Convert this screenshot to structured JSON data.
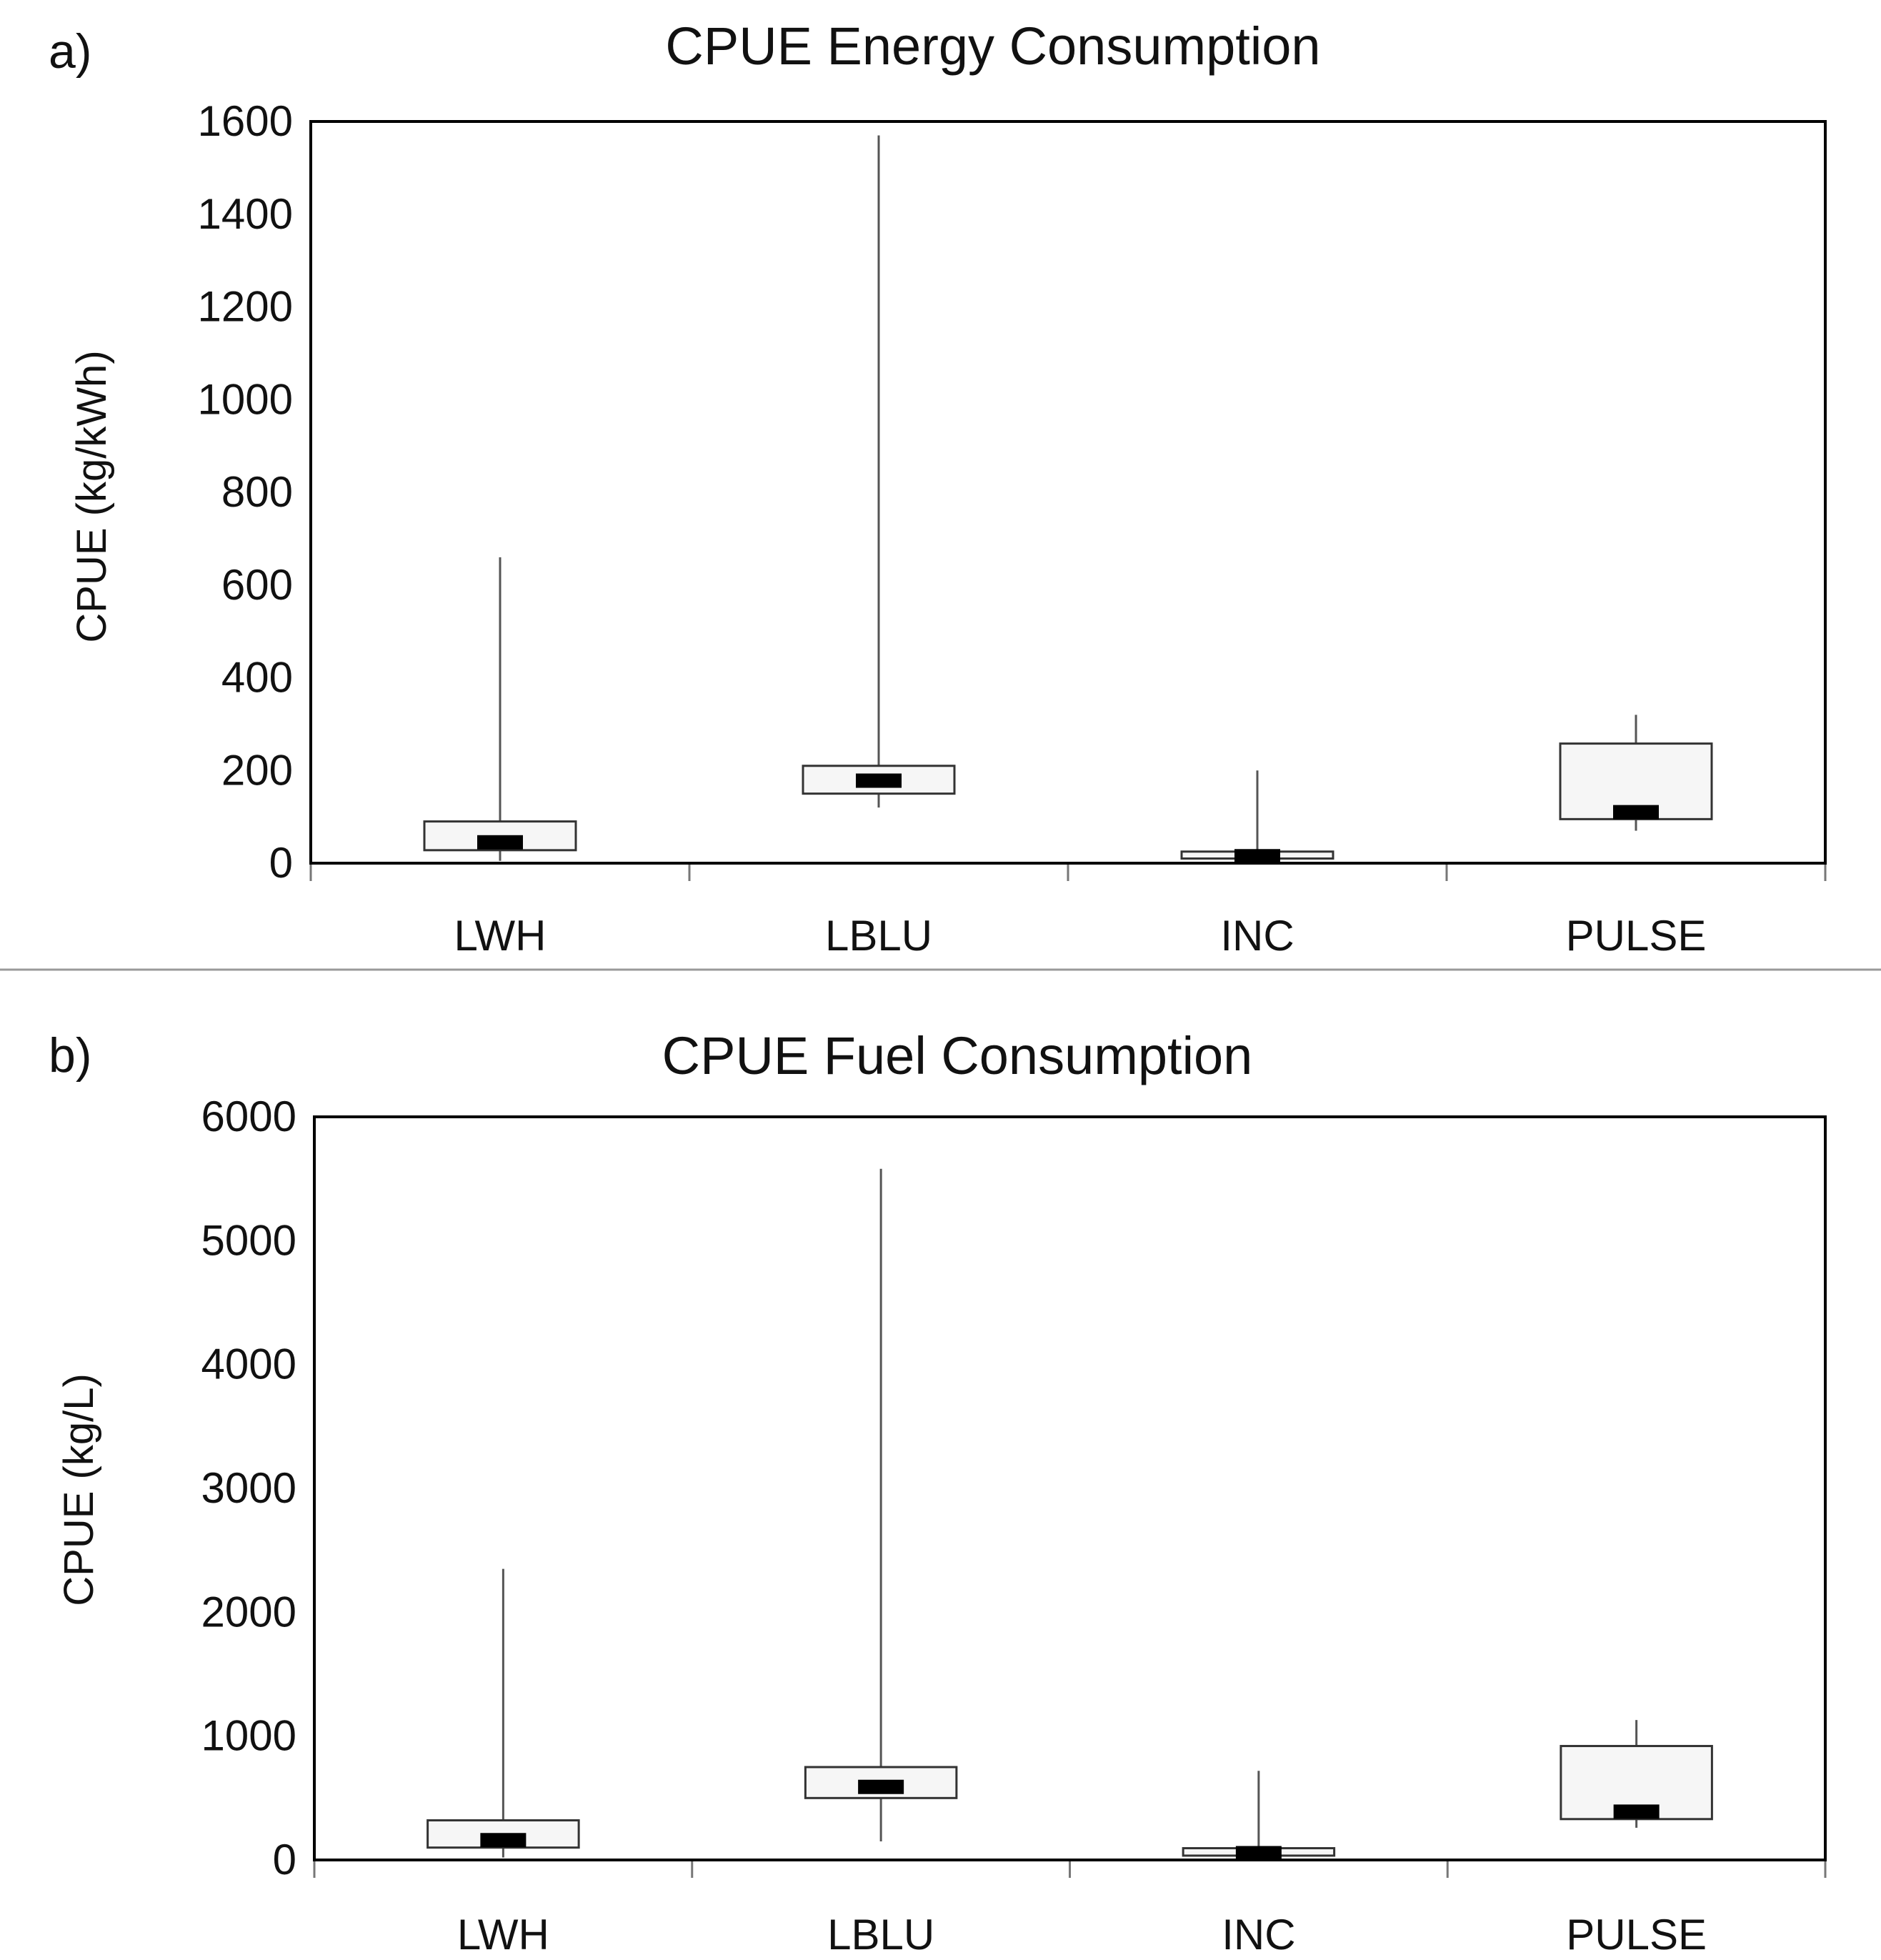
{
  "chart_data": [
    {
      "type": "box",
      "panel_label": "a)",
      "title": "CPUE Energy Consumption",
      "xlabel": "",
      "ylabel": "CPUE (kg/kWh)",
      "ylim": [
        0,
        1600
      ],
      "yticks": [
        "0",
        "200",
        "400",
        "600",
        "800",
        "1000",
        "1200",
        "1400",
        "1600"
      ],
      "categories": [
        "LWH",
        "LBLU",
        "INC",
        "PULSE"
      ],
      "series": [
        {
          "name": "LWH",
          "min": 5,
          "q1": 28,
          "median": 45,
          "q3": 90,
          "max": 660
        },
        {
          "name": "LBLU",
          "min": 120,
          "q1": 150,
          "median": 178,
          "q3": 210,
          "max": 1570
        },
        {
          "name": "INC",
          "min": 3,
          "q1": 10,
          "median": 15,
          "q3": 25,
          "max": 200
        },
        {
          "name": "PULSE",
          "min": 70,
          "q1": 95,
          "median": 110,
          "q3": 258,
          "max": 320
        }
      ]
    },
    {
      "type": "box",
      "panel_label": "b)",
      "title": "CPUE Fuel Consumption",
      "xlabel": "",
      "ylabel": "CPUE (kg/L)",
      "ylim": [
        0,
        6000
      ],
      "yticks": [
        "0",
        "1000",
        "2000",
        "3000",
        "4000",
        "5000",
        "6000"
      ],
      "categories": [
        "LWH",
        "LBLU",
        "INC",
        "PULSE"
      ],
      "series": [
        {
          "name": "LWH",
          "min": 20,
          "q1": 100,
          "median": 160,
          "q3": 320,
          "max": 2350
        },
        {
          "name": "LBLU",
          "min": 150,
          "q1": 500,
          "median": 590,
          "q3": 750,
          "max": 5580
        },
        {
          "name": "INC",
          "min": 10,
          "q1": 35,
          "median": 55,
          "q3": 95,
          "max": 720
        },
        {
          "name": "PULSE",
          "min": 260,
          "q1": 330,
          "median": 390,
          "q3": 920,
          "max": 1130
        }
      ]
    }
  ]
}
